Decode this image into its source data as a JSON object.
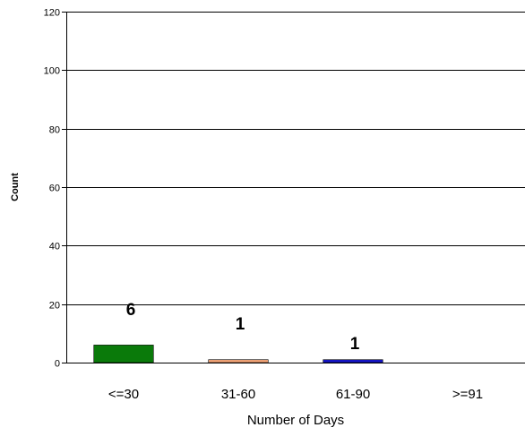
{
  "chart_data": {
    "type": "bar",
    "title": "",
    "xlabel": "Number of Days",
    "ylabel": "Count",
    "categories": [
      "<=30",
      "31-60",
      "61-90",
      ">=91"
    ],
    "values": [
      6,
      1,
      1,
      0
    ],
    "data_labels": [
      "6",
      "1",
      "1",
      ""
    ],
    "colors": [
      "#0a7a0a",
      "#f2a477",
      "#1515c8",
      "#000000"
    ],
    "ylim": [
      0,
      120
    ],
    "yticks": [
      0,
      20,
      40,
      60,
      80,
      100,
      120
    ],
    "ytick_labels": [
      "0",
      "20",
      "40",
      "60",
      "80",
      "100",
      "120"
    ],
    "grid": true,
    "legend": "none"
  }
}
